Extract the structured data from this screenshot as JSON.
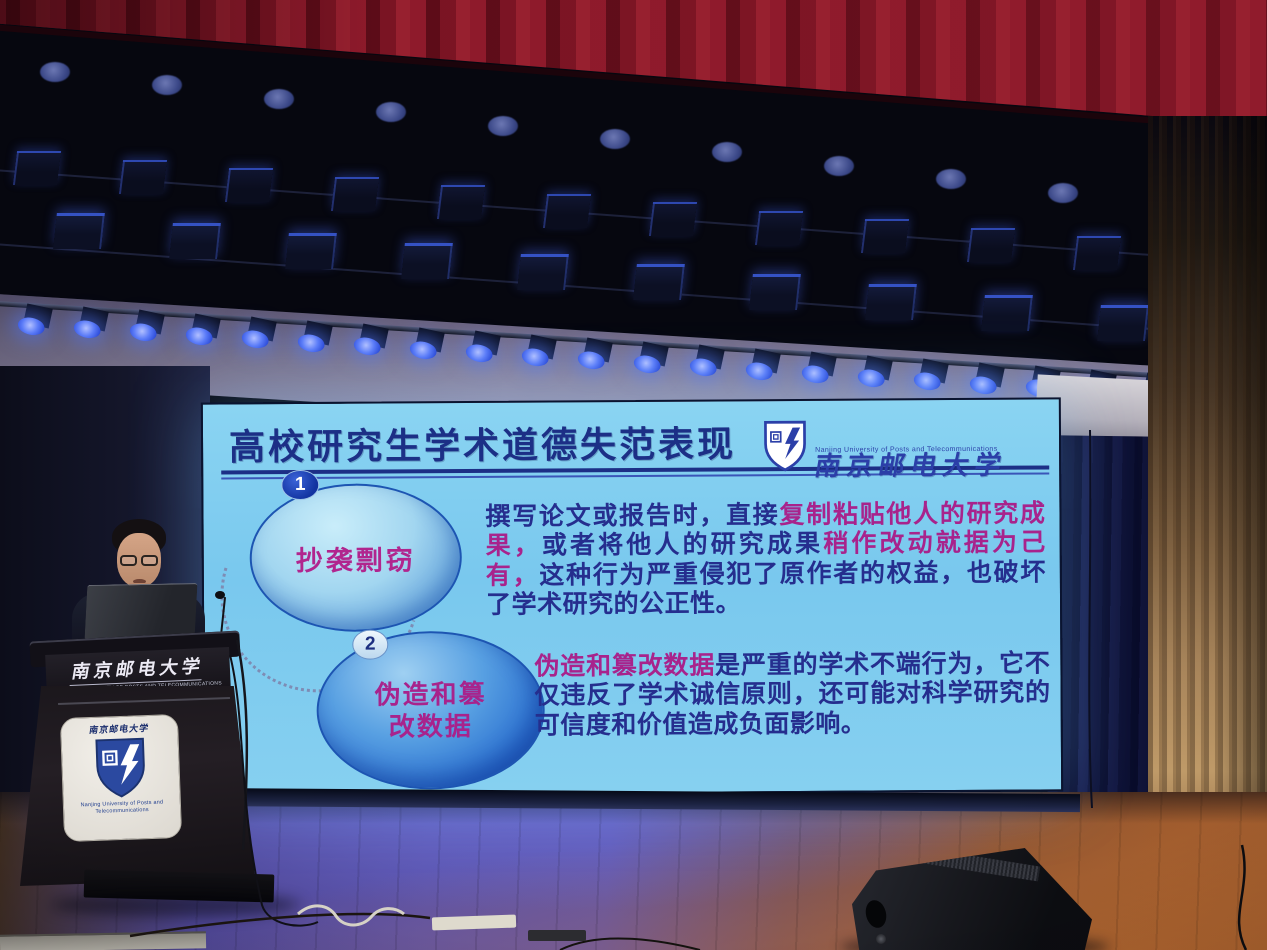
{
  "slide": {
    "title": "高校研究生学术道德失范表现",
    "logo": {
      "university_zh": "南京邮电大学",
      "university_en": "Nanjing University of Posts and Telecommunications"
    },
    "items": [
      {
        "number": "1",
        "label": "抄袭剽窃",
        "text_segments": [
          {
            "color": "navy",
            "text": "撰写论文或报告时，直接"
          },
          {
            "color": "magenta",
            "text": "复制粘贴他人的研究成果，"
          },
          {
            "color": "navy",
            "text": "或者将他人的研究成果"
          },
          {
            "color": "magenta",
            "text": "稍作改动就据为己有，"
          },
          {
            "color": "navy",
            "text": "这种行为严重侵犯了原作者的权益，也破坏了学术研究的公正性。"
          }
        ]
      },
      {
        "number": "2",
        "label": "伪造和篡改数据",
        "text_segments": [
          {
            "color": "magenta",
            "text": "伪造和篡改数据"
          },
          {
            "color": "navy",
            "text": "是严重的学术不端行为，它不仅违反了学术诚信原则，还可能对科学研究的可信度和价值造成负面影响。"
          }
        ]
      }
    ]
  },
  "podium": {
    "plate_zh": "南京邮电大学",
    "plate_sub": "NANJING UNIVERSITY OF POSTS AND TELECOMMUNICATIONS",
    "panel_zh": "南京邮电大学",
    "panel_en": "Nanjing University of Posts and Telecommunications"
  },
  "colors": {
    "screen_bg": "#7fccee",
    "slide_navy": "#252e8e",
    "slide_magenta": "#a8238c",
    "curtain_red": "#7c1322",
    "stage_light_blue": "#4a6cf0",
    "floor_purple": "#5a52ab",
    "floor_orange": "#a05c2e"
  }
}
